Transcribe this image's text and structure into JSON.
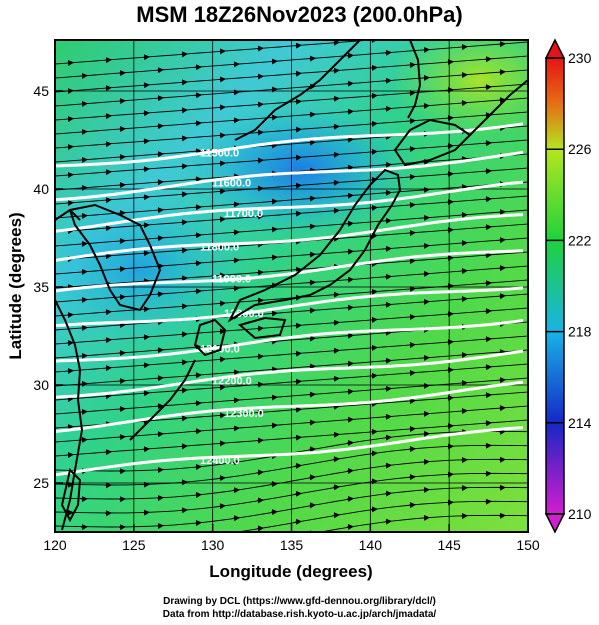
{
  "title": "MSM 18Z26Nov2023 (200.0hPa)",
  "xaxis": {
    "label": "Longitude (degrees)",
    "range": [
      120,
      150
    ],
    "ticks": [
      "120",
      "125",
      "130",
      "135",
      "140",
      "145",
      "150"
    ]
  },
  "yaxis": {
    "label": "Latitude  (degrees)",
    "range": [
      22.5,
      47.6
    ],
    "ticks": [
      "25",
      "30",
      "35",
      "40",
      "45"
    ]
  },
  "colorbar": {
    "min": 210,
    "max": 230,
    "ticks": [
      "210",
      "214",
      "218",
      "222",
      "226",
      "230"
    ],
    "colors": [
      "#d21ed2",
      "#1428c8",
      "#19b4e6",
      "#1ed23c",
      "#b4e61e",
      "#e66e14",
      "#e61414"
    ]
  },
  "contours": [
    {
      "label": "11500.0",
      "lat": 42.3
    },
    {
      "label": "11600.0",
      "lat": 40.7
    },
    {
      "label": "11700.0",
      "lat": 39.1
    },
    {
      "label": "11800.0",
      "lat": 37.5
    },
    {
      "label": "11900.0",
      "lat": 35.8
    },
    {
      "label": "12000.0",
      "lat": 34.0
    },
    {
      "label": "12100.0",
      "lat": 32.3
    },
    {
      "label": "12200.0",
      "lat": 30.6
    },
    {
      "label": "12300.0",
      "lat": 28.9
    },
    {
      "label": "12400.0",
      "lat": 26.6
    }
  ],
  "credits": [
    "Drawing by DCL (https://www.gfd-dennou.org/library/dcl/)",
    "Data from http://database.rish.kyoto-u.ac.jp/arch/jmadata/"
  ]
}
